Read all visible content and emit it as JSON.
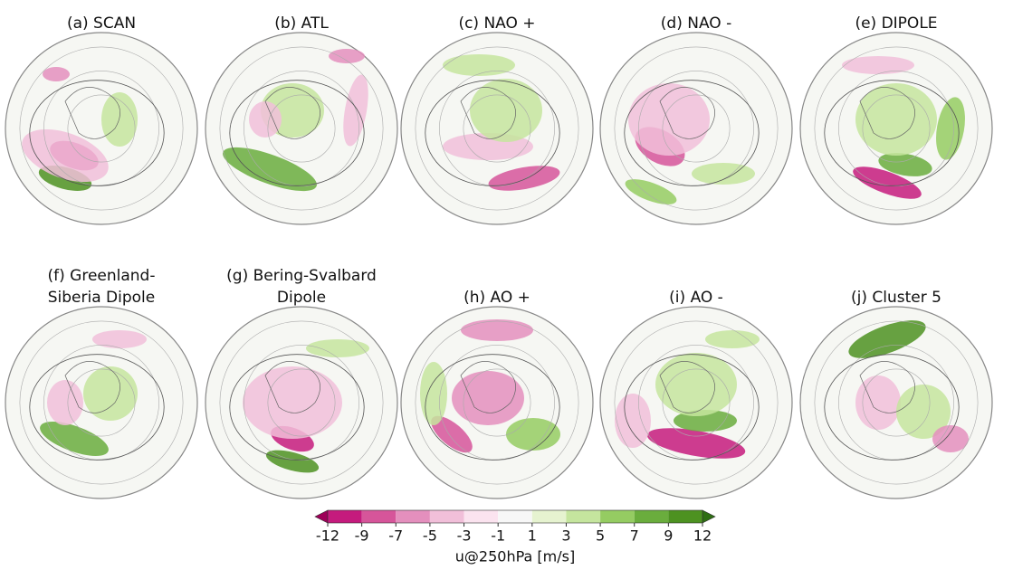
{
  "panels": [
    {
      "title": [
        "(a)  SCAN"
      ]
    },
    {
      "title": [
        "(b) ATL"
      ]
    },
    {
      "title": [
        "(c) NAO +"
      ]
    },
    {
      "title": [
        "(d) NAO -"
      ]
    },
    {
      "title": [
        "(e) DIPOLE"
      ]
    },
    {
      "title": [
        "(f) Greenland-",
        "Siberia Dipole"
      ]
    },
    {
      "title": [
        "(g) Bering-Svalbard",
        "Dipole"
      ]
    },
    {
      "title": [
        "(h) AO +"
      ]
    },
    {
      "title": [
        "(i) AO -"
      ]
    },
    {
      "title": [
        "(j) Cluster 5"
      ]
    }
  ],
  "colorbar": {
    "ticks": [
      -12,
      -9,
      -7,
      -5,
      -3,
      -1,
      1,
      3,
      5,
      7,
      9,
      12
    ],
    "colors": [
      "#c51b7d",
      "#d6559a",
      "#e48fbd",
      "#f1bfd9",
      "#fbe3ef",
      "#f7f7f7",
      "#e6f3d0",
      "#c5e59e",
      "#95cc62",
      "#6aad3d",
      "#4d9221"
    ],
    "under_color": "#9e0059",
    "over_color": "#2f6e14",
    "label": "u@250hPa [m/s]"
  }
}
